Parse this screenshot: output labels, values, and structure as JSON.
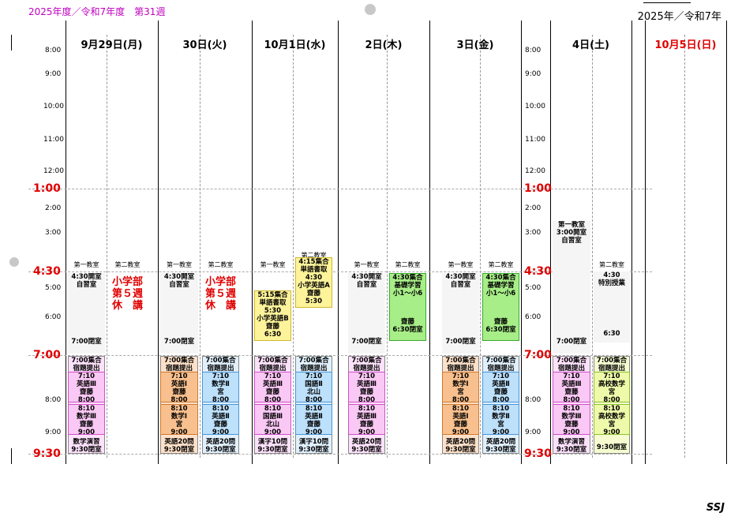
{
  "header": {
    "left": "2025年度／令和7年度　第31週",
    "right": "2025年／令和7年"
  },
  "days": [
    {
      "label": "9月29日(月)",
      "color": "#000000"
    },
    {
      "label": "30日(火)",
      "color": "#000000"
    },
    {
      "label": "10月1日(水)",
      "color": "#000000"
    },
    {
      "label": "2日(木)",
      "color": "#000000"
    },
    {
      "label": "3日(金)",
      "color": "#000000"
    },
    {
      "label": "4日(土)",
      "color": "#000000"
    },
    {
      "label": "10月5日(日)",
      "color": "#e00000"
    }
  ],
  "times": [
    "8:00",
    "9:00",
    "10:00",
    "11:00",
    "12:00",
    "2:00",
    "3:00",
    "5:00",
    "6:00",
    "8:00",
    "9:00"
  ],
  "bold_times": [
    "1:00",
    "4:30",
    "7:00",
    "9:30"
  ],
  "rooms": {
    "first": "第一教室",
    "second": "第二教室"
  },
  "common": {
    "open430": "4:30開室",
    "jishu": "自習室",
    "close700": "7:00閉室",
    "shugo700": "7:00集合",
    "shukudai": "宿題提出",
    "t710": "7:10",
    "t800": "8:00",
    "t810": "8:10",
    "t900": "9:00",
    "close930": "9:30閉室",
    "eigo20": "英語20問",
    "kanji10": "漢字10問",
    "sugaku_ensyu": "数学演習"
  },
  "mon": {
    "sho1": "小学部",
    "sho2": "第５週",
    "sho3": "休　講"
  },
  "wed": {
    "a1": "4:15集合",
    "a2": "単語書取",
    "a3": "4:30",
    "a4": "小学英語A",
    "a5": "齋藤",
    "a6": "5:30",
    "b1": "5:15集合",
    "b2": "単語書取",
    "b3": "5:30",
    "b4": "小学英語B",
    "b5": "齋藤",
    "b6": "6:30"
  },
  "kiso": {
    "k1": "4:30集合",
    "k2": "基礎学習",
    "k3": "小1～小6",
    "k4": "齋藤",
    "k5": "6:30閉室"
  },
  "sat": {
    "open300": "3:00開室",
    "t430": "4:30",
    "tokubetsu": "特別授業",
    "t630": "6:30"
  },
  "subjects": {
    "eigo3": "英語Ⅲ",
    "sugaku3": "数学Ⅲ",
    "eigo1": "英語Ⅰ",
    "sugaku1": "数学Ⅰ",
    "sugaku2": "数学Ⅱ",
    "eigo2": "英語Ⅱ",
    "kokugo3": "国語Ⅲ",
    "kokugo2": "国語Ⅱ",
    "kosugaku": "高校数学"
  },
  "teachers": {
    "saito": "齋藤",
    "miya": "宮",
    "kitayama": "北山"
  },
  "footer": "SSJ"
}
